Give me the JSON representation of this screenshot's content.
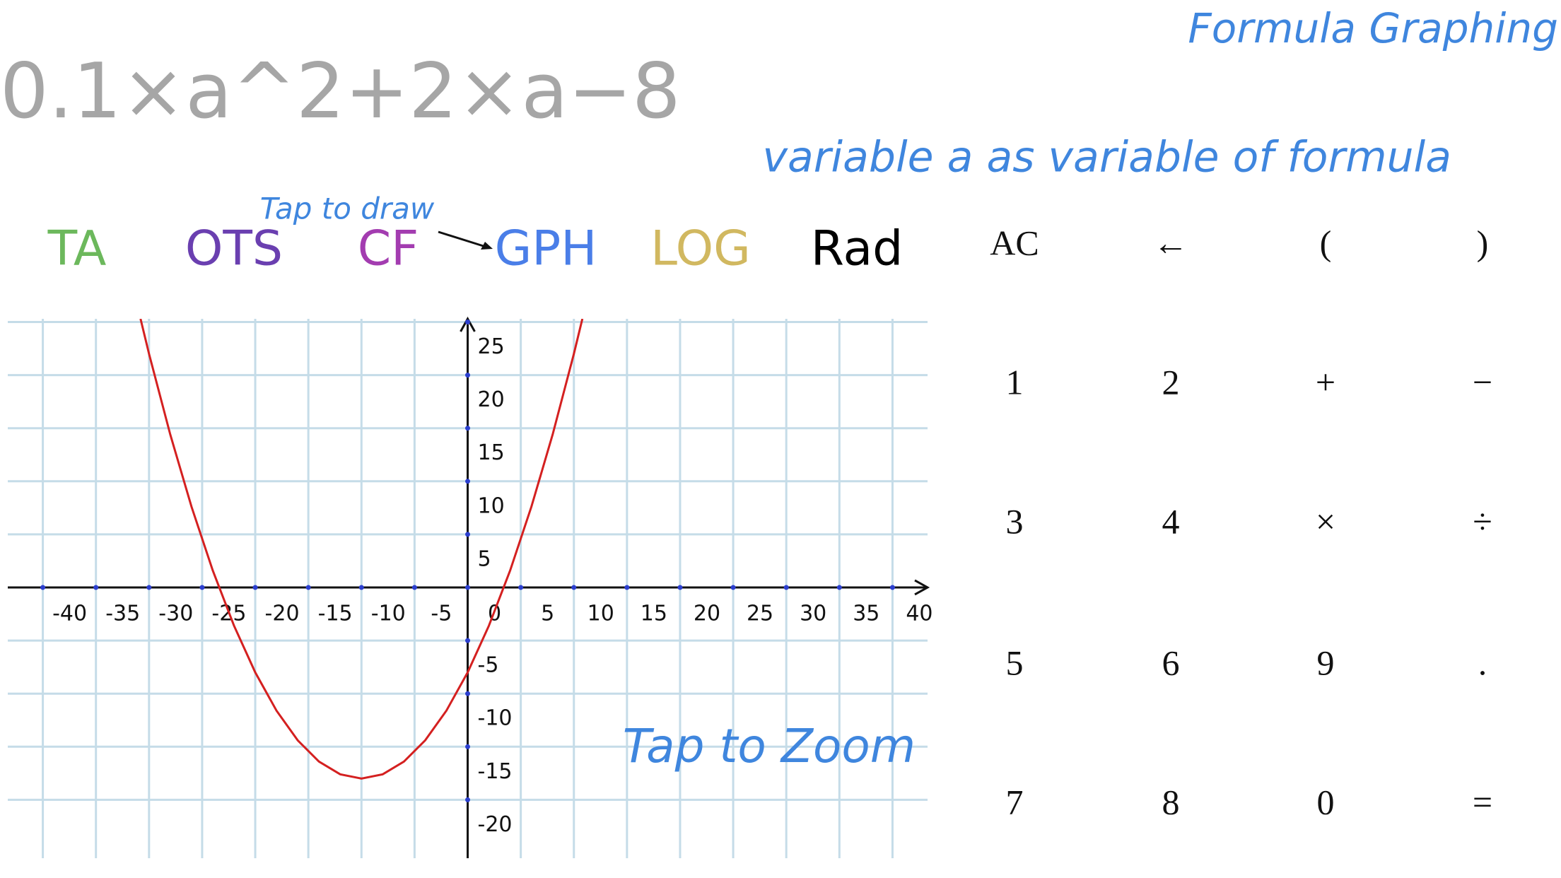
{
  "header": {
    "formula": "0.1×a^2+2×a−8",
    "title": "Formula Graphing",
    "subtitle": "variable a as variable of formula",
    "hint": "Tap to draw"
  },
  "tabs": [
    "TA",
    "OTS",
    "CF",
    "GPH",
    "LOG",
    "Rad"
  ],
  "keypad": [
    [
      "AC",
      "←",
      "(",
      ")"
    ],
    [
      "1",
      "2",
      "+",
      "−"
    ],
    [
      "3",
      "4",
      "×",
      "÷"
    ],
    [
      "5",
      "6",
      "9",
      "."
    ],
    [
      "7",
      "8",
      "0",
      "="
    ]
  ],
  "chart_data": {
    "type": "line",
    "annotation": "Tap to Zoom",
    "x": [
      -30.8,
      -30,
      -28,
      -26,
      -24,
      -22,
      -20,
      -18,
      -16,
      -14,
      -12,
      -10,
      -8,
      -6,
      -4,
      -2,
      0,
      2,
      4,
      6,
      8,
      10,
      10.8
    ],
    "series": [
      {
        "color": "#d42020",
        "values": [
          25.3,
          22,
          14.4,
          7.6,
          1.6,
          -3.6,
          -8,
          -11.6,
          -14.4,
          -16.4,
          -17.6,
          -18,
          -17.6,
          -16.4,
          -14.4,
          -11.6,
          -8,
          -3.6,
          1.6,
          7.6,
          14.4,
          22,
          25.3
        ]
      }
    ],
    "xlim": [
      -43.3,
      43.3
    ],
    "ylim": [
      -25.5,
      25.3
    ],
    "xticks": [
      -40,
      -35,
      -30,
      -25,
      -20,
      -15,
      -10,
      -5,
      0,
      5,
      10,
      15,
      20,
      25,
      30,
      35,
      40
    ],
    "yticks": [
      -20,
      -15,
      -10,
      -5,
      5,
      10,
      15,
      20,
      25
    ],
    "grid": true
  }
}
